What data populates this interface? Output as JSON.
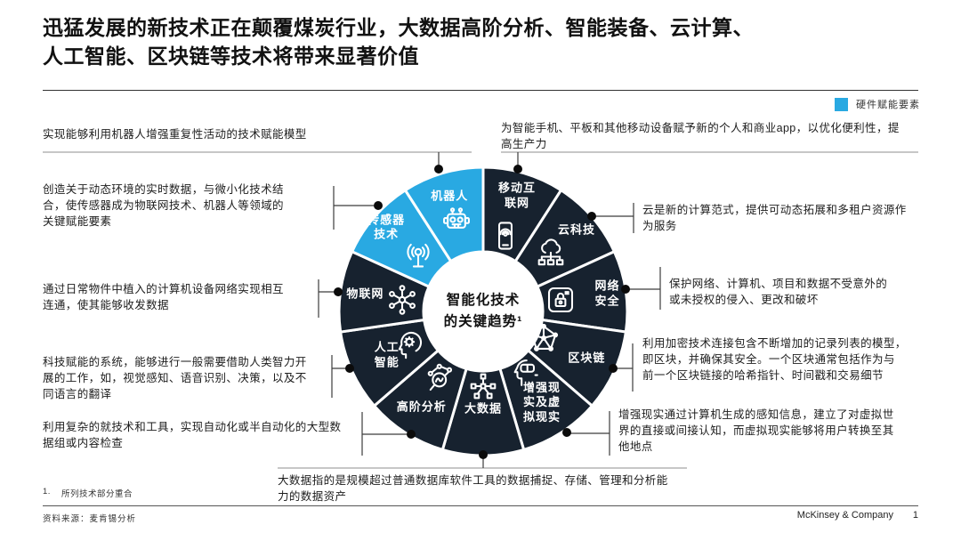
{
  "title": "迅猛发展的新技术正在颠覆煤炭行业，大数据高阶分析、智能装备、云计算、\n人工智能、区块链等技术将带来显著价值",
  "legend": {
    "label": "硬件赋能要素",
    "color": "#29a9e2"
  },
  "wheel": {
    "center_label": "智能化技术\n的关键趋势¹",
    "colors": {
      "dark": "#17222f",
      "light": "#29a9e2"
    },
    "segments": [
      {
        "label": "移动互\n联网",
        "icon": "mobile-internet-icon",
        "tone": "dark"
      },
      {
        "label": "云科技",
        "icon": "cloud-icon",
        "tone": "dark"
      },
      {
        "label": "网络\n安全",
        "icon": "cybersecurity-icon",
        "tone": "dark"
      },
      {
        "label": "区块链",
        "icon": "blockchain-icon",
        "tone": "dark"
      },
      {
        "label": "增强现\n实及虚\n拟现实",
        "icon": "ar-vr-icon",
        "tone": "dark"
      },
      {
        "label": "大数据",
        "icon": "big-data-icon",
        "tone": "dark"
      },
      {
        "label": "高阶分析",
        "icon": "analytics-icon",
        "tone": "dark"
      },
      {
        "label": "人工\n智能",
        "icon": "ai-icon",
        "tone": "dark"
      },
      {
        "label": "物联网",
        "icon": "iot-icon",
        "tone": "dark"
      },
      {
        "label": "传感器\n技术",
        "icon": "sensor-icon",
        "tone": "light"
      },
      {
        "label": "机器人",
        "icon": "robot-icon",
        "tone": "light"
      }
    ]
  },
  "annotations": {
    "robot": {
      "text": "实现能够利用机器人增强重复性活动的技术赋能模型"
    },
    "sensor": {
      "text": "创造关于动态环境的实时数据，与微小化技术结\n合，使传感器成为物联网技术、机器人等领域的\n关键赋能要素"
    },
    "iot": {
      "text": "通过日常物件中植入的计算机设备网络实现相互\n连通，使其能够收发数据"
    },
    "ai": {
      "text": "科技赋能的系统，能够进行一般需要借助人类智力开\n展的工作，如，视觉感知、语音识别、决策，以及不\n同语言的翻译"
    },
    "analytics": {
      "text": "利用复杂的就技术和工具，实现自动化或半自动化的大型数\n据组或内容检查"
    },
    "big_data": {
      "text": "大数据指的是规模超过普通数据库软件工具的数据捕捉、存储、管理和分析能\n力的数据资产"
    },
    "mobile_internet": {
      "text": "为智能手机、平板和其他移动设备赋予新的个人和商业app，以优化便利性，提\n高生产力"
    },
    "cloud": {
      "text": "云是新的计算范式，提供可动态拓展和多租户资源作\n为服务"
    },
    "cybersecurity": {
      "text": "保护网络、计算机、项目和数据不受意外的\n或未授权的侵入、更改和破坏"
    },
    "blockchain": {
      "text": "利用加密技术连接包含不断增加的记录列表的模型，\n即区块，并确保其安全。一个区块通常包括作为与\n前一个区块链接的哈希指针、时间戳和交易细节"
    },
    "ar_vr": {
      "text": "增强现实通过计算机生成的感知信息，建立了对虚拟世\n界的直接或间接认知，而虚拟现实能够将用户转换至其\n他地点"
    }
  },
  "footnote": {
    "num": "1.",
    "text": "所列技术部分重合"
  },
  "source": "资料来源：麦肯锡分析",
  "footer": {
    "brand": "McKinsey & Company",
    "page": "1"
  }
}
